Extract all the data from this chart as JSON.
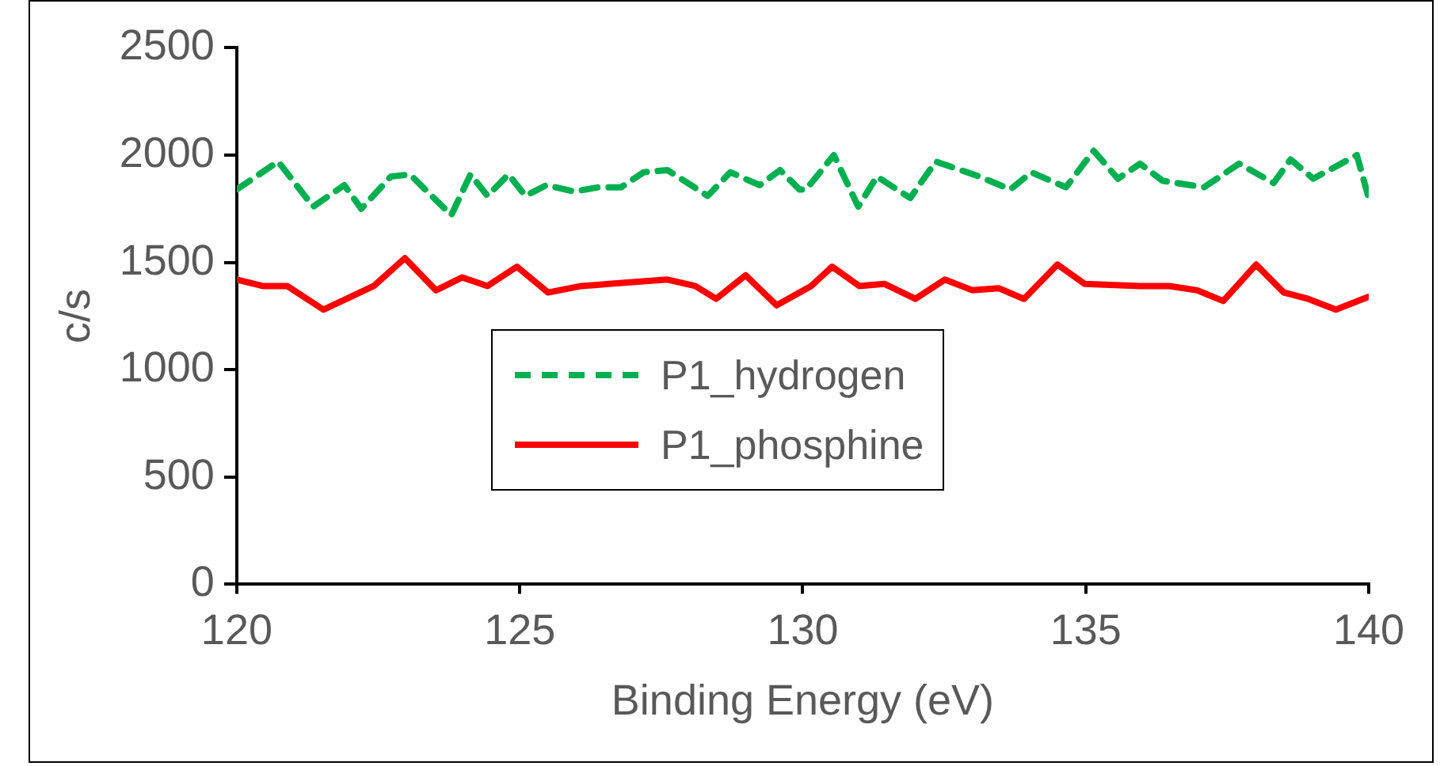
{
  "chart_data": {
    "type": "line",
    "xlabel": "Binding Energy (eV)",
    "ylabel": "c/s",
    "xlim": [
      120,
      140
    ],
    "xticks": [
      120,
      125,
      130,
      135,
      140
    ],
    "ylim": [
      0,
      2500
    ],
    "yticks": [
      0,
      500,
      1000,
      1500,
      2000,
      2500
    ],
    "grid": false,
    "legend": "bottom left",
    "marker": "none",
    "series": [
      {
        "name": "P1_hydrogen",
        "color": "#00b050",
        "line_style": "dashed",
        "x": [
          120,
          120.73,
          121.35,
          121.9,
          122.2,
          122.72,
          123.06,
          123.79,
          124.13,
          124.43,
          124.8,
          125.1,
          125.47,
          125.96,
          126.39,
          126.79,
          127.19,
          127.61,
          128.32,
          128.72,
          129.24,
          129.6,
          129.94,
          130.06,
          130.55,
          130.98,
          131.31,
          131.9,
          132.35,
          133.12,
          133.67,
          134.04,
          134.65,
          135.14,
          135.57,
          135.96,
          136.36,
          137.09,
          137.71,
          138.32,
          138.62,
          139.02,
          139.79,
          140
        ],
        "values": [
          1840,
          1970,
          1760,
          1860,
          1750,
          1900,
          1910,
          1720,
          1910,
          1810,
          1910,
          1810,
          1860,
          1830,
          1850,
          1850,
          1920,
          1930,
          1810,
          1920,
          1860,
          1930,
          1840,
          1840,
          2000,
          1760,
          1900,
          1800,
          1970,
          1900,
          1840,
          1920,
          1850,
          2020,
          1890,
          1960,
          1880,
          1850,
          1960,
          1870,
          1980,
          1890,
          2000,
          1800
        ]
      },
      {
        "name": "P1_phosphine",
        "color": "#ff0000",
        "line_style": "solid",
        "x": [
          120,
          120.46,
          120.89,
          121.53,
          122.42,
          122.97,
          123.52,
          123.98,
          124.43,
          124.95,
          125.5,
          126.09,
          127.61,
          128.1,
          128.47,
          128.99,
          129.54,
          130.15,
          130.52,
          131.0,
          131.44,
          131.99,
          132.51,
          133.0,
          133.46,
          133.91,
          134.5,
          134.98,
          135.96,
          136.48,
          136.97,
          137.43,
          138.01,
          138.5,
          138.93,
          139.42,
          140
        ],
        "values": [
          1420,
          1390,
          1390,
          1280,
          1390,
          1520,
          1370,
          1430,
          1390,
          1480,
          1360,
          1390,
          1420,
          1390,
          1330,
          1440,
          1300,
          1390,
          1480,
          1390,
          1400,
          1330,
          1420,
          1370,
          1380,
          1330,
          1490,
          1400,
          1390,
          1390,
          1370,
          1320,
          1490,
          1360,
          1330,
          1280,
          1340
        ]
      }
    ]
  }
}
